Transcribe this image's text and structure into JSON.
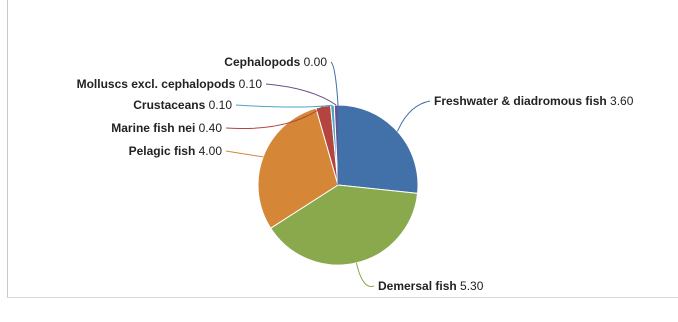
{
  "chart_data": {
    "type": "pie",
    "title": "",
    "slices": [
      {
        "name": "Freshwater & diadromous fish",
        "value": 3.6,
        "value_label": "3.60",
        "color": "#4271a9"
      },
      {
        "name": "Demersal fish",
        "value": 5.3,
        "value_label": "5.30",
        "color": "#89a94c"
      },
      {
        "name": "Pelagic fish",
        "value": 4.0,
        "value_label": "4.00",
        "color": "#d68637"
      },
      {
        "name": "Marine fish nei",
        "value": 0.4,
        "value_label": "0.40",
        "color": "#b4443f"
      },
      {
        "name": "Crustaceans",
        "value": 0.1,
        "value_label": "0.10",
        "color": "#4aa5c6"
      },
      {
        "name": "Molluscs excl. cephalopods",
        "value": 0.1,
        "value_label": "0.10",
        "color": "#6a4f8a"
      },
      {
        "name": "Cephalopods",
        "value": 0.0,
        "value_label": "0.00",
        "color": "#3c6fa5"
      }
    ],
    "legend": "none",
    "data_labels": "outside with connector lines"
  }
}
